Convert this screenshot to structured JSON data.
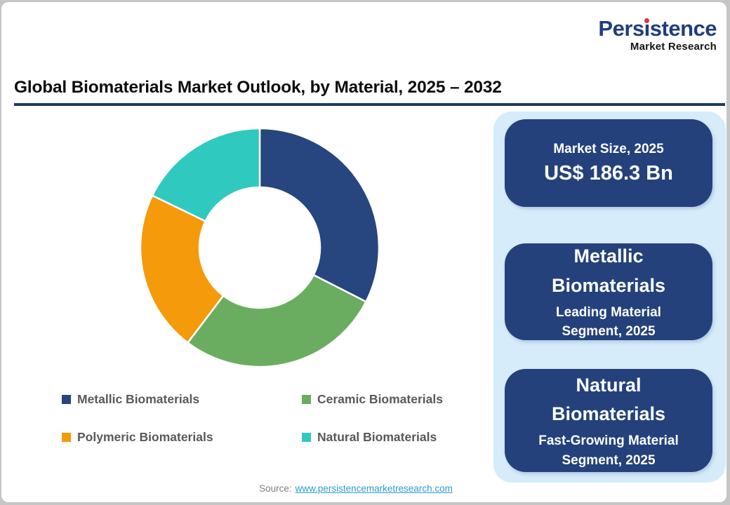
{
  "logo": {
    "brand_pre": "Pers",
    "brand_i": "ı",
    "brand_post": "stence",
    "tagline": "Market Research",
    "brand_color": "#1F3E7D",
    "dot_color": "#D6383E"
  },
  "header": {
    "title": "Global Biomaterials Market Outlook, by Material, 2025 – 2032",
    "rule_color": "#1F3864"
  },
  "chart_data": {
    "type": "pie",
    "subtype": "donut",
    "title": "Global Biomaterials Market Outlook, by Material, 2025 – 2032",
    "categories": [
      "Metallic Biomaterials",
      "Ceramic Biomaterials",
      "Polymeric Biomaterials",
      "Natural Biomaterials"
    ],
    "values": [
      32.5,
      27.8,
      21.9,
      17.8
    ],
    "values_are_estimated_pct": true,
    "colors": [
      "#27457E",
      "#6BAD60",
      "#F59A0A",
      "#2FC9BF"
    ],
    "start_angle_deg": 0,
    "direction": "clockwise",
    "inner_radius_ratio": 0.5,
    "legend_position": "bottom",
    "data_labels": false
  },
  "info_panel": {
    "background_color": "#D7ECFA",
    "card_color": "#24417B",
    "cards": [
      {
        "title": "Market Size, 2025",
        "value": "US$ 186.3 Bn"
      },
      {
        "headline": "Metallic\nBiomaterials",
        "subline": "Leading Material\nSegment, 2025"
      },
      {
        "headline": "Natural\nBiomaterials",
        "subline": "Fast-Growing Material\nSegment, 2025"
      }
    ]
  },
  "footer": {
    "source_label": "Source:",
    "source_link": "www.persistencemarketresearch.com",
    "link_color": "#2E9BD5"
  }
}
